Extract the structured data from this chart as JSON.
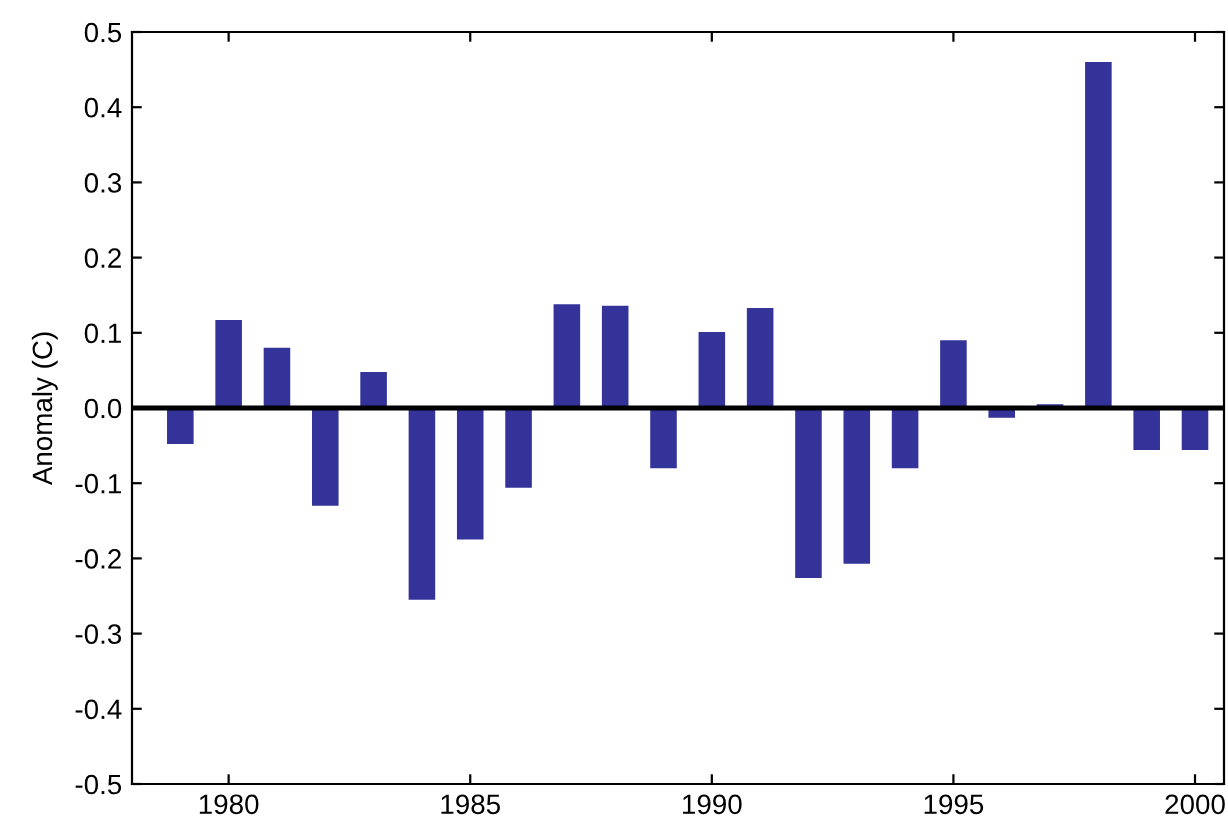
{
  "chart_data": {
    "type": "bar",
    "ylabel": "Anomaly (C)",
    "x": [
      1979,
      1980,
      1981,
      1982,
      1983,
      1984,
      1985,
      1986,
      1987,
      1988,
      1989,
      1990,
      1991,
      1992,
      1993,
      1994,
      1995,
      1996,
      1997,
      1998,
      1999,
      2000
    ],
    "values": [
      -0.048,
      0.117,
      0.08,
      -0.13,
      0.048,
      -0.255,
      -0.175,
      -0.106,
      0.138,
      0.136,
      -0.08,
      0.101,
      0.133,
      -0.226,
      -0.207,
      -0.08,
      0.09,
      -0.013,
      0.005,
      0.46,
      -0.056,
      -0.056
    ],
    "color": "#333399",
    "xlim": [
      1978,
      2000.6
    ],
    "xticks": [
      1980,
      1985,
      1990,
      1995,
      2000
    ],
    "ylim": [
      -0.5,
      0.5
    ],
    "yticks": [
      -0.5,
      -0.4,
      -0.3,
      -0.2,
      -0.1,
      {
        "value": 0,
        "label": "0.0"
      },
      0.1,
      0.2,
      0.3,
      0.4,
      0.5
    ],
    "ref_lines": [
      {
        "axis": "y",
        "value": 0,
        "color": "#000000"
      }
    ],
    "grid": false
  }
}
